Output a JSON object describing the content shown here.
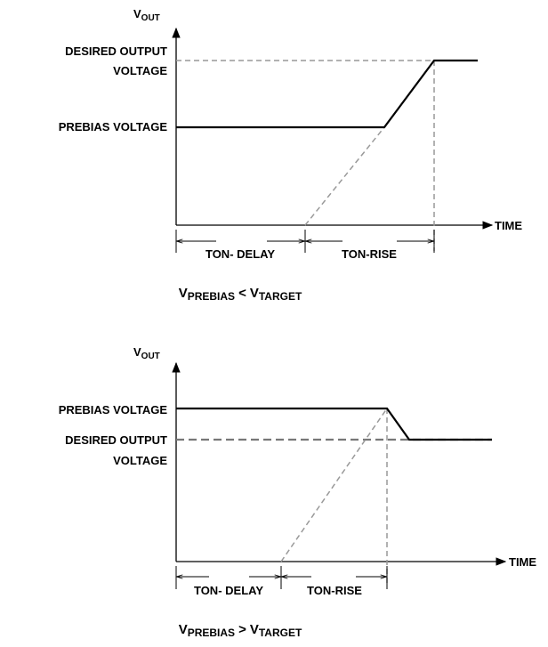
{
  "diagram1": {
    "y_axis": {
      "main": "V",
      "sub": "OUT"
    },
    "x_axis": "TIME",
    "desired": [
      "DESIRED OUTPUT",
      "VOLTAGE"
    ],
    "prebias": "PREBIAS VOLTAGE",
    "phases": [
      "TON- DELAY",
      "TON-RISE"
    ],
    "caption": {
      "v1": "V",
      "sub1": "PREBIAS",
      "op": "<",
      "v2": "V",
      "sub2": "TARGET"
    }
  },
  "diagram2": {
    "y_axis": {
      "main": "V",
      "sub": "OUT"
    },
    "x_axis": "TIME",
    "desired": [
      "DESIRED OUTPUT",
      "VOLTAGE"
    ],
    "prebias": "PREBIAS VOLTAGE",
    "phases": [
      "TON- DELAY",
      "TON-RISE"
    ],
    "caption": {
      "v1": "V",
      "sub1": "PREBIAS",
      "op": ">",
      "v2": "V",
      "sub2": "TARGET"
    }
  }
}
